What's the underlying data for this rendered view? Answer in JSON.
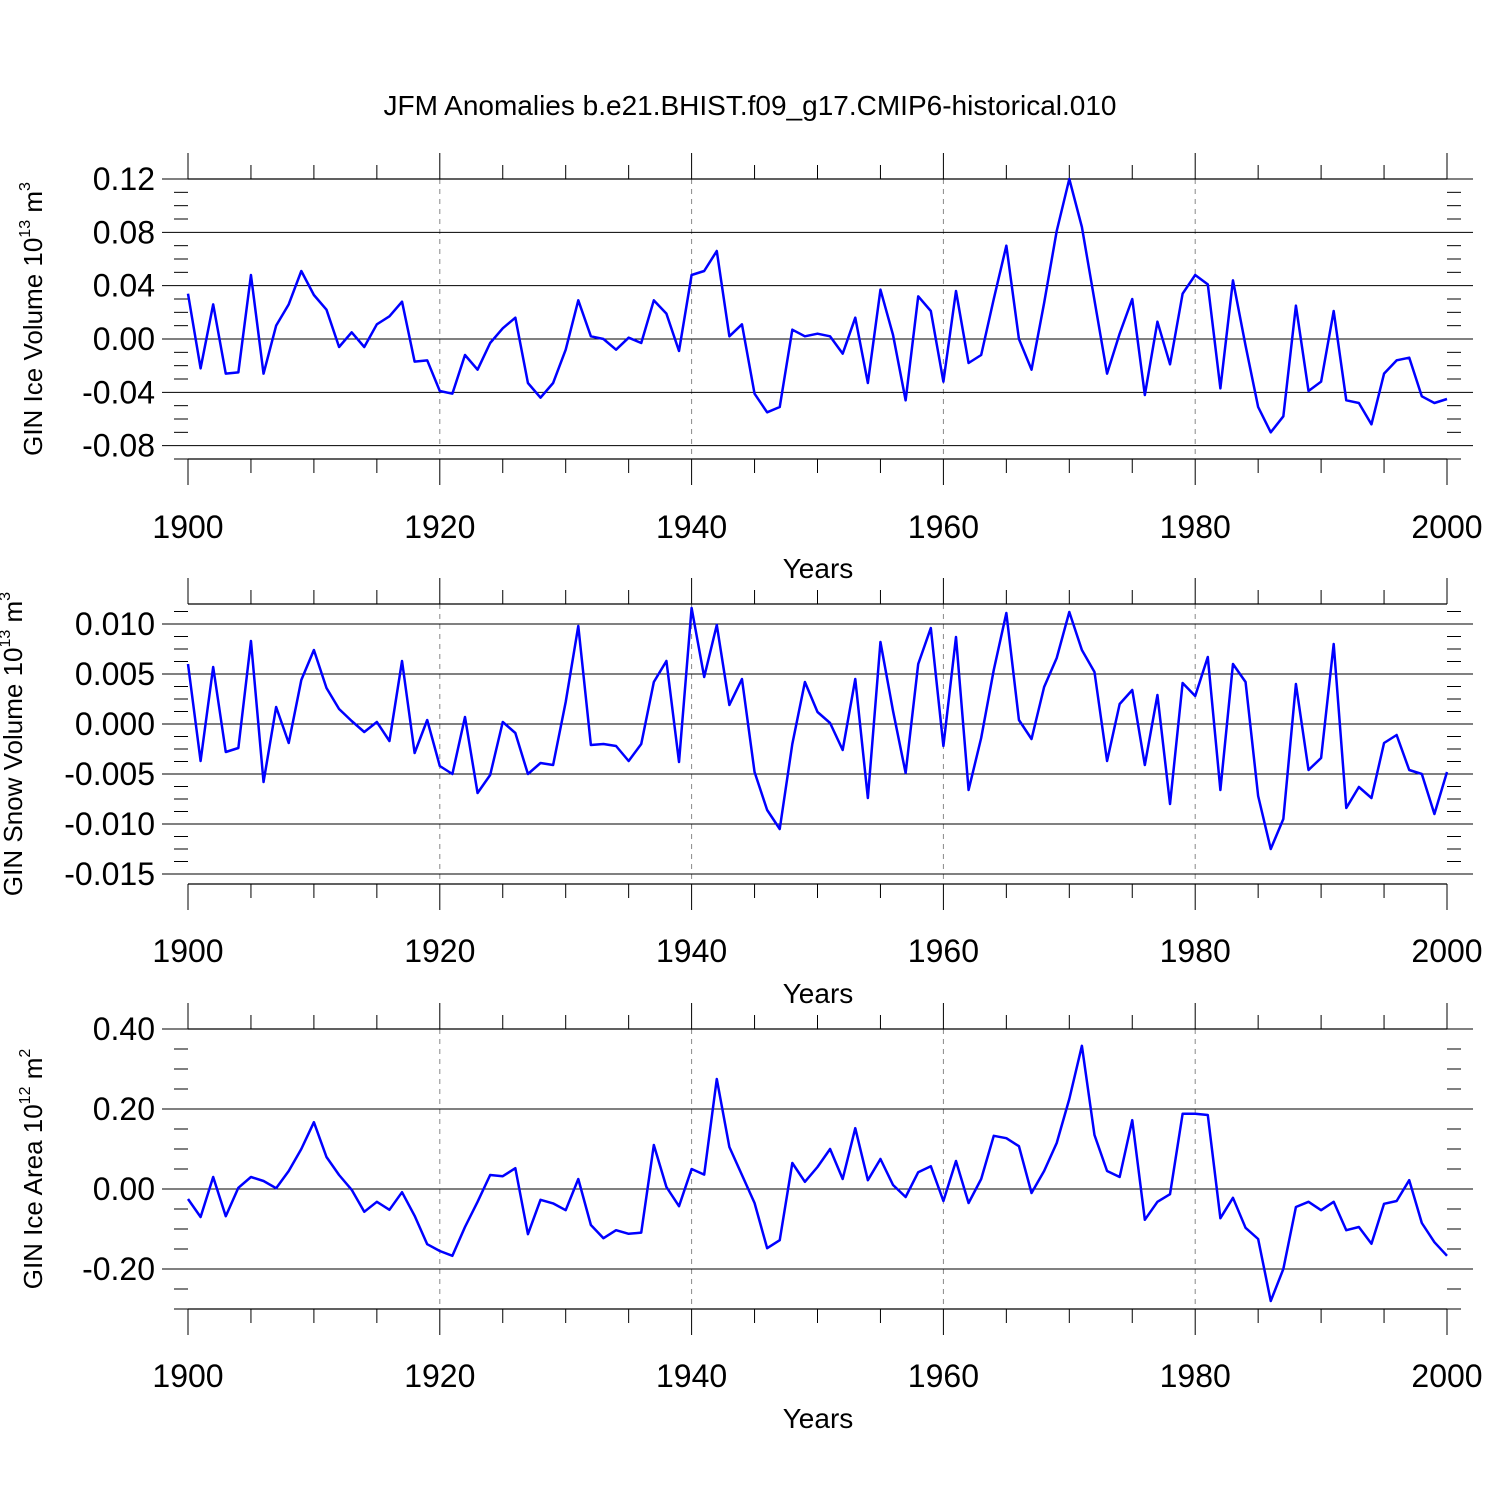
{
  "title": "JFM Anomalies b.e21.BHIST.f09_g17.CMIP6-historical.010",
  "colors": {
    "line": "#0000ff",
    "axes": "#000000",
    "grid": "#888888"
  },
  "chart_data": [
    {
      "type": "line",
      "title": "JFM Anomalies b.e21.BHIST.f09_g17.CMIP6-historical.010",
      "xlabel": "Years",
      "ylabel": {
        "text": "GIN Ice Volume 10",
        "sup": "13",
        "unit": "m",
        "unit_sup": "3"
      },
      "xlim": [
        1900,
        2000
      ],
      "ylim": [
        -0.09,
        0.12
      ],
      "xticks": [
        "1900",
        "1920",
        "1940",
        "1960",
        "1980",
        "2000"
      ],
      "yticks": [
        "0.12",
        "0.08",
        "0.04",
        "0.00",
        "-0.04",
        "-0.08"
      ],
      "grid_x": [
        1920,
        1940,
        1960,
        1980
      ],
      "x_start": 1900,
      "values": [
        0.034,
        -0.022,
        0.026,
        -0.026,
        -0.025,
        0.048,
        -0.026,
        0.01,
        0.026,
        0.051,
        0.033,
        0.022,
        -0.006,
        0.005,
        -0.006,
        0.011,
        0.017,
        0.028,
        -0.017,
        -0.016,
        -0.039,
        -0.041,
        -0.012,
        -0.023,
        -0.003,
        0.008,
        0.016,
        -0.033,
        -0.044,
        -0.033,
        -0.008,
        0.029,
        0.002,
        0.0,
        -0.008,
        0.001,
        -0.003,
        0.029,
        0.019,
        -0.009,
        0.048,
        0.051,
        0.066,
        0.002,
        0.011,
        -0.041,
        -0.055,
        -0.051,
        0.007,
        0.002,
        0.004,
        0.002,
        -0.011,
        0.016,
        -0.033,
        0.037,
        0.003,
        -0.046,
        0.032,
        0.021,
        -0.032,
        0.036,
        -0.018,
        -0.012,
        0.03,
        0.07,
        0.0,
        -0.023,
        0.027,
        0.081,
        0.12,
        0.084,
        0.029,
        -0.026,
        0.004,
        0.03,
        -0.042,
        0.013,
        -0.019,
        0.034,
        0.048,
        0.041,
        -0.037,
        0.044,
        -0.005,
        -0.051,
        -0.07,
        -0.058,
        0.025,
        -0.039,
        -0.032,
        0.021,
        -0.046,
        -0.048,
        -0.064,
        -0.026,
        -0.016,
        -0.014,
        -0.043,
        -0.048,
        -0.045
      ]
    },
    {
      "type": "line",
      "xlabel": "Years",
      "ylabel": {
        "text": "GIN Snow Volume 10",
        "sup": "13",
        "unit": "m",
        "unit_sup": "3"
      },
      "xlim": [
        1900,
        2000
      ],
      "ylim": [
        -0.016,
        0.012
      ],
      "xticks": [
        "1900",
        "1920",
        "1940",
        "1960",
        "1980",
        "2000"
      ],
      "yticks": [
        "0.010",
        "0.005",
        "0.000",
        "-0.005",
        "-0.010",
        "-0.015"
      ],
      "grid_x": [
        1920,
        1940,
        1960,
        1980
      ],
      "x_start": 1900,
      "values": [
        0.006,
        -0.0037,
        0.0057,
        -0.0028,
        -0.0024,
        0.0083,
        -0.0058,
        0.0017,
        -0.0019,
        0.0044,
        0.0074,
        0.0036,
        0.0015,
        0.0003,
        -0.0008,
        0.0002,
        -0.0017,
        0.0063,
        -0.0029,
        0.0004,
        -0.0042,
        -0.005,
        0.0007,
        -0.0069,
        -0.0051,
        0.0002,
        -0.0009,
        -0.005,
        -0.0039,
        -0.0041,
        0.0022,
        0.0098,
        -0.0021,
        -0.002,
        -0.0022,
        -0.0037,
        -0.002,
        0.0042,
        0.0063,
        -0.0038,
        0.0116,
        0.0047,
        0.0099,
        0.0019,
        0.0045,
        -0.0048,
        -0.0086,
        -0.0105,
        -0.002,
        0.0042,
        0.0012,
        0.0001,
        -0.0026,
        0.0045,
        -0.0074,
        0.0082,
        0.0013,
        -0.0049,
        0.006,
        0.0096,
        -0.0022,
        0.0087,
        -0.0066,
        -0.0014,
        0.0054,
        0.0111,
        0.0004,
        -0.0015,
        0.0037,
        0.0066,
        0.0112,
        0.0074,
        0.0052,
        -0.0037,
        0.002,
        0.0034,
        -0.0041,
        0.0029,
        -0.008,
        0.0041,
        0.0028,
        0.0067,
        -0.0066,
        0.006,
        0.0042,
        -0.0072,
        -0.0125,
        -0.0095,
        0.004,
        -0.0046,
        -0.0034,
        0.008,
        -0.0084,
        -0.0063,
        -0.0074,
        -0.0019,
        -0.0011,
        -0.0046,
        -0.005,
        -0.009,
        -0.0048
      ]
    },
    {
      "type": "line",
      "xlabel": "Years",
      "ylabel": {
        "text": "GIN Ice Area 10",
        "sup": "12",
        "unit": "m",
        "unit_sup": "2"
      },
      "xlim": [
        1900,
        2000
      ],
      "ylim": [
        -0.3,
        0.4
      ],
      "xticks": [
        "1900",
        "1920",
        "1940",
        "1960",
        "1980",
        "2000"
      ],
      "yticks": [
        "0.40",
        "0.20",
        "0.00",
        "-0.20"
      ],
      "grid_x": [
        1920,
        1940,
        1960,
        1980
      ],
      "x_start": 1900,
      "values": [
        -0.025,
        -0.07,
        0.03,
        -0.068,
        0.003,
        0.03,
        0.02,
        0.002,
        0.045,
        0.1,
        0.167,
        0.08,
        0.035,
        -0.002,
        -0.057,
        -0.032,
        -0.052,
        -0.008,
        -0.067,
        -0.138,
        -0.155,
        -0.167,
        -0.095,
        -0.032,
        0.035,
        0.032,
        0.052,
        -0.113,
        -0.027,
        -0.036,
        -0.053,
        0.025,
        -0.09,
        -0.123,
        -0.103,
        -0.112,
        -0.109,
        0.11,
        0.005,
        -0.043,
        0.05,
        0.036,
        0.275,
        0.105,
        0.035,
        -0.035,
        -0.148,
        -0.128,
        0.065,
        0.018,
        0.055,
        0.1,
        0.025,
        0.152,
        0.022,
        0.075,
        0.01,
        -0.02,
        0.042,
        0.057,
        -0.03,
        0.07,
        -0.035,
        0.025,
        0.133,
        0.127,
        0.107,
        -0.01,
        0.045,
        0.115,
        0.225,
        0.358,
        0.135,
        0.045,
        0.03,
        0.172,
        -0.077,
        -0.032,
        -0.013,
        0.188,
        0.188,
        0.185,
        -0.073,
        -0.022,
        -0.097,
        -0.125,
        -0.28,
        -0.2,
        -0.045,
        -0.032,
        -0.053,
        -0.032,
        -0.103,
        -0.095,
        -0.137,
        -0.037,
        -0.03,
        0.022,
        -0.085,
        -0.133,
        -0.167
      ]
    }
  ]
}
